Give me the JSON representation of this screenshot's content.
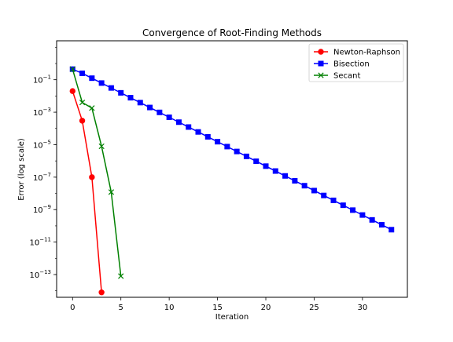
{
  "chart_data": {
    "type": "line",
    "title": "Convergence of Root-Finding Methods",
    "xlabel": "Iteration",
    "ylabel": "Error (log scale)",
    "yscale": "log",
    "xlim": [
      -1.65,
      34.65
    ],
    "ylim_log10": [
      -14.4,
      1.4
    ],
    "xticks": [
      0,
      5,
      10,
      15,
      20,
      25,
      30
    ],
    "yticks": [
      {
        "exp": -13,
        "base": "10",
        "sup": "−13"
      },
      {
        "exp": -11,
        "base": "10",
        "sup": "−11"
      },
      {
        "exp": -9,
        "base": "10",
        "sup": "−9"
      },
      {
        "exp": -7,
        "base": "10",
        "sup": "−7"
      },
      {
        "exp": -5,
        "base": "10",
        "sup": "−5"
      },
      {
        "exp": -3,
        "base": "10",
        "sup": "−3"
      },
      {
        "exp": -1,
        "base": "10",
        "sup": "−1"
      }
    ],
    "legend_position": "top-right",
    "grid": false,
    "series": [
      {
        "name": "Newton-Raphson",
        "color": "#ff0000",
        "marker": "circle",
        "x": [
          0,
          1,
          2,
          3
        ],
        "y": [
          0.02,
          0.0003,
          1e-07,
          8e-15
        ]
      },
      {
        "name": "Bisection",
        "color": "#0000ff",
        "marker": "square",
        "x": [
          0,
          1,
          2,
          3,
          4,
          5,
          6,
          7,
          8,
          9,
          10,
          11,
          12,
          13,
          14,
          15,
          16,
          17,
          18,
          19,
          20,
          21,
          22,
          23,
          24,
          25,
          26,
          27,
          28,
          29,
          30,
          31,
          32,
          33
        ],
        "y": [
          0.45,
          0.25,
          0.125,
          0.0625,
          0.03125,
          0.015625,
          0.0078125,
          0.00390625,
          0.001953125,
          0.0009765625,
          0.00048828125,
          0.000244140625,
          0.0001220703125,
          6.103515625e-05,
          3.0517578125e-05,
          1.52587890625e-05,
          7.62939453125e-06,
          3.814697265625e-06,
          1.9073486328125e-06,
          9.5367431640625e-07,
          4.76837158203125e-07,
          2.384185791015625e-07,
          1.1920928955078125e-07,
          5.960464477539063e-08,
          2.9802322387695312e-08,
          1.4901161193847656e-08,
          7.450580596923828e-09,
          3.725290298461914e-09,
          1.862645149230957e-09,
          9.313225746154785e-10,
          4.656612873077393e-10,
          2.3283064365386963e-10,
          1.1641532182693481e-10,
          5.820766091346741e-11
        ]
      },
      {
        "name": "Secant",
        "color": "#008000",
        "marker": "x",
        "x": [
          0,
          1,
          2,
          3,
          4,
          5
        ],
        "y": [
          0.45,
          0.004,
          0.0018,
          8e-06,
          1.2e-08,
          8e-14
        ]
      }
    ]
  }
}
